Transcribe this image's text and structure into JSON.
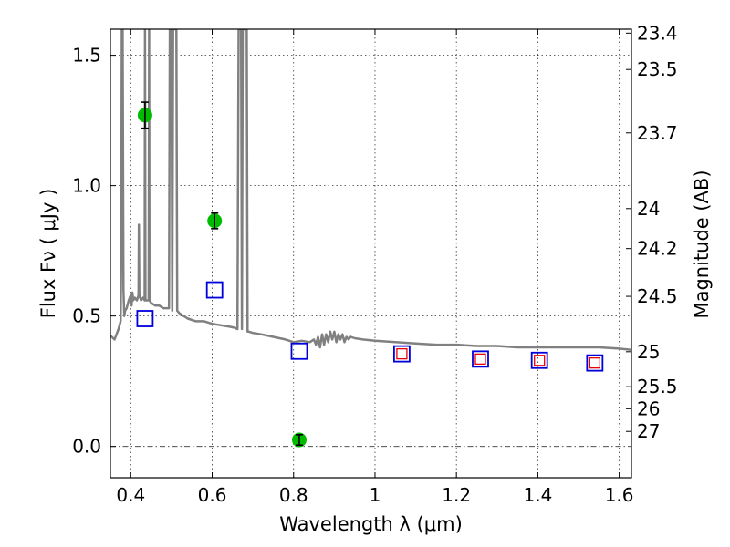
{
  "chart_data": {
    "type": "scatter",
    "xlabel": "Wavelength  λ (μm)",
    "ylabel": "Flux  Fν  ( μJy )",
    "ylabel_right": "Magnitude (AB)",
    "xlim": [
      0.35,
      1.63
    ],
    "ylim": [
      -0.12,
      1.6
    ],
    "x_ticks": [
      0.4,
      0.6,
      0.8,
      1.0,
      1.2,
      1.4,
      1.6
    ],
    "x_tick_labels": [
      "0.4",
      "0.6",
      "0.8",
      "1",
      "1.2",
      "1.4",
      "1.6"
    ],
    "y_ticks": [
      0.0,
      0.5,
      1.0,
      1.5
    ],
    "y_tick_labels": [
      "0.0",
      "0.5",
      "1.0",
      "1.5"
    ],
    "mag_ticks": [
      23.4,
      23.5,
      23.7,
      24,
      24.2,
      24.5,
      25,
      25.5,
      26,
      27
    ],
    "mag_tick_labels": [
      "23.4",
      "23.5",
      "23.7",
      "24",
      "24.2",
      "24.5",
      "25",
      "25.5",
      "26",
      "27"
    ],
    "grid": true,
    "series": [
      {
        "marker": "circle",
        "color": "#00bb00",
        "x": [
          0.435,
          0.606,
          0.814
        ],
        "y": [
          1.27,
          0.865,
          0.025
        ],
        "yerr": [
          0.05,
          0.03,
          0.02
        ]
      },
      {
        "marker": "open-square",
        "color": "#0000dd",
        "x": [
          0.435,
          0.606,
          0.814,
          1.066,
          1.259,
          1.404,
          1.54
        ],
        "y": [
          0.49,
          0.6,
          0.365,
          0.355,
          0.335,
          0.33,
          0.32
        ]
      },
      {
        "marker": "open-square-small",
        "color": "#ee0000",
        "x": [
          1.066,
          1.259,
          1.404,
          1.54
        ],
        "y": [
          0.355,
          0.335,
          0.33,
          0.32
        ]
      },
      {
        "type": "line",
        "color": "#808080",
        "x": [
          0.35,
          0.36,
          0.37,
          0.375,
          0.377,
          0.378,
          0.379,
          0.38,
          0.382,
          0.384,
          0.386,
          0.39,
          0.395,
          0.4,
          0.402,
          0.404,
          0.406,
          0.41,
          0.415,
          0.419,
          0.42,
          0.421,
          0.425,
          0.43,
          0.434,
          0.435,
          0.436,
          0.44,
          0.444,
          0.445,
          0.446,
          0.45,
          0.46,
          0.47,
          0.48,
          0.49,
          0.494,
          0.496,
          0.498,
          0.5,
          0.502,
          0.504,
          0.506,
          0.508,
          0.51,
          0.512,
          0.514,
          0.52,
          0.54,
          0.56,
          0.58,
          0.6,
          0.62,
          0.64,
          0.655,
          0.662,
          0.665,
          0.667,
          0.669,
          0.671,
          0.673,
          0.675,
          0.677,
          0.68,
          0.683,
          0.685,
          0.687,
          0.69,
          0.7,
          0.72,
          0.75,
          0.78,
          0.8,
          0.82,
          0.84,
          0.85,
          0.855,
          0.86,
          0.865,
          0.87,
          0.875,
          0.88,
          0.885,
          0.89,
          0.895,
          0.9,
          0.905,
          0.91,
          0.915,
          0.92,
          0.925,
          0.93,
          0.935,
          0.94,
          0.95,
          0.97,
          1.0,
          1.05,
          1.1,
          1.15,
          1.2,
          1.25,
          1.3,
          1.35,
          1.4,
          1.45,
          1.5,
          1.55,
          1.6,
          1.63
        ],
        "y": [
          0.425,
          0.41,
          0.45,
          0.48,
          0.8,
          1.6,
          1.6,
          1.6,
          0.6,
          0.5,
          0.52,
          0.53,
          0.56,
          0.58,
          0.54,
          0.59,
          0.56,
          0.57,
          0.56,
          0.58,
          0.85,
          0.58,
          0.56,
          0.57,
          0.56,
          1.6,
          0.56,
          0.56,
          0.56,
          1.6,
          0.56,
          0.55,
          0.54,
          0.54,
          0.53,
          0.53,
          0.53,
          1.6,
          1.6,
          1.6,
          0.52,
          1.6,
          1.6,
          1.6,
          1.6,
          1.6,
          0.52,
          0.51,
          0.49,
          0.48,
          0.48,
          0.47,
          0.465,
          0.46,
          0.455,
          0.45,
          1.6,
          1.6,
          1.6,
          1.6,
          0.45,
          1.6,
          1.6,
          1.6,
          1.6,
          1.6,
          0.44,
          0.44,
          0.435,
          0.43,
          0.42,
          0.41,
          0.4,
          0.405,
          0.4,
          0.41,
          0.39,
          0.42,
          0.38,
          0.43,
          0.39,
          0.43,
          0.4,
          0.44,
          0.41,
          0.44,
          0.4,
          0.43,
          0.41,
          0.43,
          0.4,
          0.42,
          0.41,
          0.42,
          0.415,
          0.41,
          0.405,
          0.4,
          0.395,
          0.39,
          0.39,
          0.385,
          0.385,
          0.38,
          0.38,
          0.38,
          0.38,
          0.38,
          0.375,
          0.37
        ]
      }
    ]
  }
}
